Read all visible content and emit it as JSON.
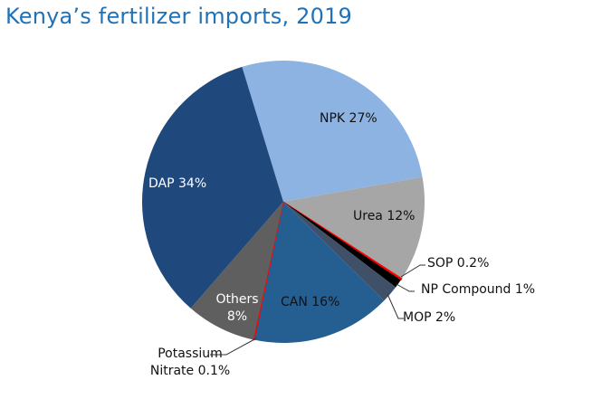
{
  "chart_data": {
    "type": "pie",
    "title": "Kenya’s fertilizer imports, 2019",
    "slices": [
      {
        "name": "NPK",
        "value": 27,
        "label": "NPK 27%",
        "color": "#8db3e2"
      },
      {
        "name": "Urea",
        "value": 12,
        "label": "Urea 12%",
        "color": "#a6a6a6"
      },
      {
        "name": "SOP",
        "value": 0.2,
        "label": "SOP 0.2%",
        "color": "#ff0000"
      },
      {
        "name": "NP Compound",
        "value": 1,
        "label": "NP Compound 1%",
        "color": "#000000"
      },
      {
        "name": "MOP",
        "value": 2,
        "label": "MOP 2%",
        "color": "#3f5068"
      },
      {
        "name": "CAN",
        "value": 16,
        "label": "CAN 16%",
        "color": "#255e91"
      },
      {
        "name": "Potassium Nitrate",
        "value": 0.1,
        "label_line1": "Potassium",
        "label_line2": "Nitrate 0.1%",
        "color": "#ff0000"
      },
      {
        "name": "Others",
        "value": 8,
        "label_line1": "Others",
        "label_line2": "8%",
        "color": "#5f5f5f"
      },
      {
        "name": "DAP",
        "value": 34,
        "label": "DAP 34%",
        "color": "#1f497d"
      }
    ],
    "start_angle_deg": -17,
    "direction": "clockwise"
  }
}
